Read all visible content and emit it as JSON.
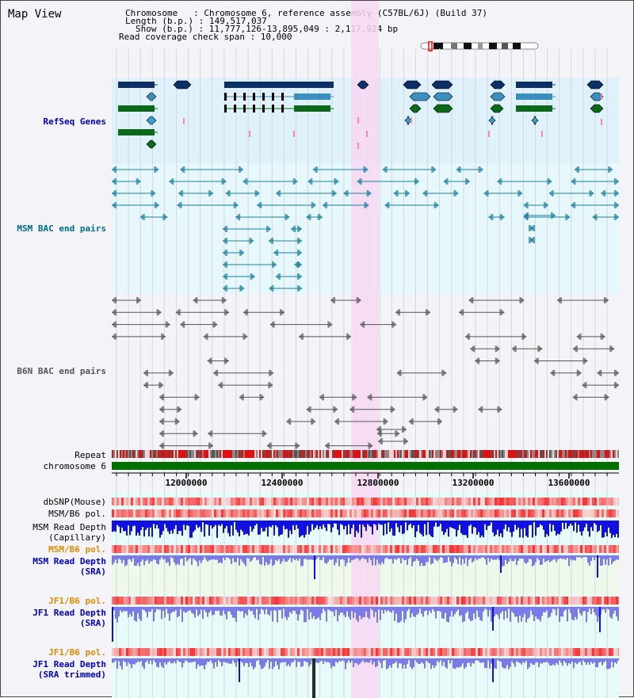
{
  "title": "Map View",
  "info": {
    "chromosome_line": "Chromosome   : Chromosome 6, reference assembly (C57BL/6J) (Build 37)",
    "length_line": "Length (b.p.) : 149,517,037",
    "show_line": "Show (b.p.) : 11,777,126-13,895,049 : 2,117,924 bp",
    "coverage_line": "Read coverage check span : 10,000"
  },
  "tracks": {
    "refseq": "RefSeq Genes",
    "msm_bac": "MSM BAC end pairs",
    "b6n_bac": "B6N BAC end pairs",
    "repeat": "Repeat",
    "chromosome": "chromosome 6",
    "dbsnp": "dbSNP(Mouse)",
    "msm_b6_pol_1": "MSM/B6 pol.",
    "msm_read_depth_cap_1": "MSM Read Depth",
    "msm_read_depth_cap_2": "(Capillary)",
    "msm_b6_pol_2": "MSM/B6 pol.",
    "msm_read_depth_sra_1": "MSM Read Depth",
    "msm_read_depth_sra_2": "(SRA)",
    "jf1_b6_pol_1": "JF1/B6 pol.",
    "jf1_read_depth_sra_1": "JF1 Read Depth",
    "jf1_read_depth_sra_2": "(SRA)",
    "jf1_b6_pol_2": "JF1/B6 pol.",
    "jf1_read_depth_trim_1": "JF1 Read Depth",
    "jf1_read_depth_trim_2": "(SRA trimmed)"
  },
  "axis": {
    "ticks": [
      "12000000",
      "12400000",
      "12800000",
      "13200000",
      "13600000"
    ]
  },
  "colors": {
    "highlight": "#f7d8f2",
    "gene_band": "#dff1fb",
    "msm_band": "#e6f8fb",
    "lower_band": "#e8fbfb",
    "chromosome": "#007000",
    "depth_dark": "#1010e0",
    "depth_light": "#7a7ae8"
  }
}
